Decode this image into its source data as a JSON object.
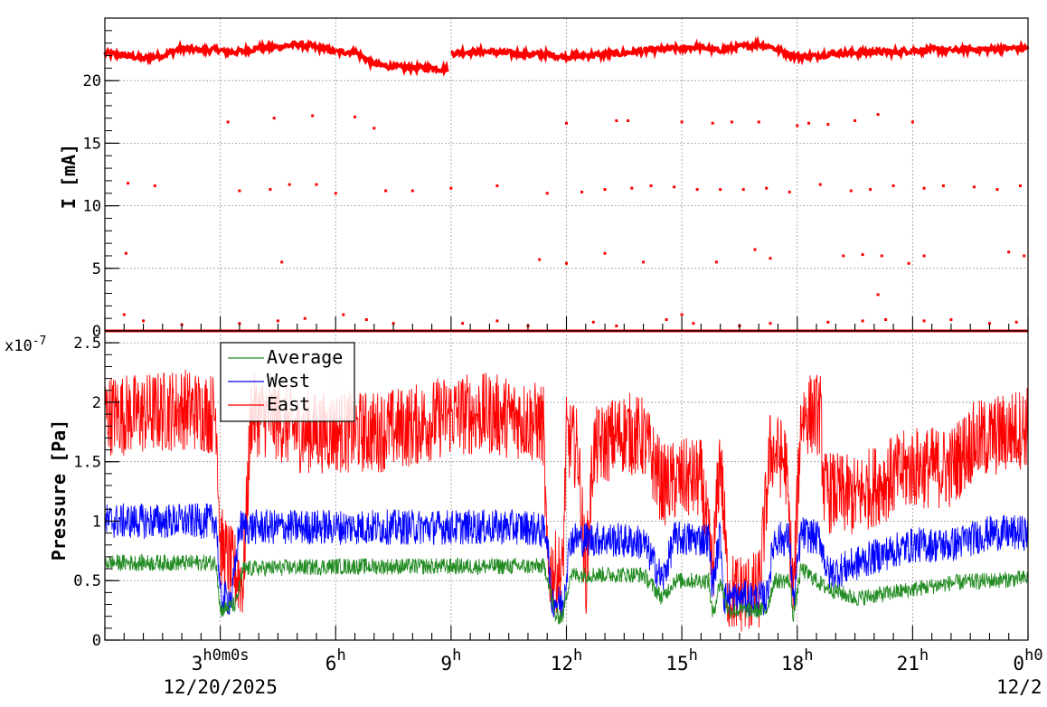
{
  "chart_data": [
    {
      "type": "scatter",
      "ylabel": "I [mA]",
      "ylim": [
        0,
        25
      ],
      "yticks": [
        "0",
        "5",
        "10",
        "15",
        "20"
      ],
      "grid": true,
      "series": [
        {
          "color": "#ff0000",
          "main_level": [
            [
              0.0,
              22.2
            ],
            [
              0.5,
              22.0
            ],
            [
              1.0,
              21.8
            ],
            [
              1.5,
              22.0
            ],
            [
              2.0,
              22.6
            ],
            [
              2.5,
              22.4
            ],
            [
              3.0,
              22.5
            ],
            [
              3.05,
              22.3
            ],
            [
              3.5,
              22.3
            ],
            [
              4.0,
              22.6
            ],
            [
              4.5,
              22.7
            ],
            [
              5.0,
              22.9
            ],
            [
              5.5,
              22.7
            ],
            [
              6.0,
              22.3
            ],
            [
              6.5,
              22.3
            ],
            [
              7.0,
              21.3
            ],
            [
              7.5,
              21.1
            ],
            [
              8.0,
              21.0
            ],
            [
              8.5,
              21.0
            ],
            [
              8.9,
              20.9
            ],
            [
              9.0,
              22.2
            ],
            [
              9.5,
              22.3
            ],
            [
              10.0,
              22.3
            ],
            [
              10.5,
              22.2
            ],
            [
              11.0,
              22.1
            ],
            [
              11.5,
              22.1
            ],
            [
              11.9,
              21.9
            ],
            [
              12.5,
              22.0
            ],
            [
              13.0,
              22.1
            ],
            [
              13.5,
              22.2
            ],
            [
              14.0,
              22.4
            ],
            [
              14.5,
              22.5
            ],
            [
              15.0,
              22.6
            ],
            [
              15.5,
              22.7
            ],
            [
              15.9,
              22.4
            ],
            [
              16.5,
              22.7
            ],
            [
              17.0,
              22.9
            ],
            [
              17.3,
              22.7
            ],
            [
              18.0,
              21.9
            ],
            [
              18.5,
              22.0
            ],
            [
              19.0,
              22.2
            ],
            [
              19.5,
              22.2
            ],
            [
              20.0,
              22.3
            ],
            [
              20.5,
              22.3
            ],
            [
              21.0,
              22.4
            ],
            [
              21.5,
              22.5
            ],
            [
              22.0,
              22.4
            ],
            [
              22.5,
              22.5
            ],
            [
              23.0,
              22.5
            ],
            [
              23.5,
              22.6
            ],
            [
              24.0,
              22.6
            ]
          ],
          "outliers": [
            [
              3.2,
              16.7
            ],
            [
              4.4,
              17.0
            ],
            [
              5.4,
              17.2
            ],
            [
              6.5,
              17.1
            ],
            [
              7.0,
              16.2
            ],
            [
              12.0,
              16.6
            ],
            [
              13.3,
              16.8
            ],
            [
              13.6,
              16.8
            ],
            [
              15.0,
              16.7
            ],
            [
              15.8,
              16.6
            ],
            [
              16.3,
              16.7
            ],
            [
              17.0,
              16.7
            ],
            [
              18.0,
              16.4
            ],
            [
              18.3,
              16.6
            ],
            [
              18.8,
              16.5
            ],
            [
              19.5,
              16.8
            ],
            [
              20.1,
              17.3
            ],
            [
              21.0,
              16.7
            ],
            [
              0.6,
              11.8
            ],
            [
              1.3,
              11.6
            ],
            [
              3.5,
              11.2
            ],
            [
              4.3,
              11.3
            ],
            [
              4.8,
              11.7
            ],
            [
              5.5,
              11.7
            ],
            [
              6.0,
              11.0
            ],
            [
              7.3,
              11.2
            ],
            [
              8.0,
              11.2
            ],
            [
              9.0,
              11.4
            ],
            [
              10.2,
              11.6
            ],
            [
              11.5,
              11.0
            ],
            [
              12.4,
              11.1
            ],
            [
              13.0,
              11.3
            ],
            [
              13.7,
              11.4
            ],
            [
              14.2,
              11.6
            ],
            [
              14.8,
              11.5
            ],
            [
              15.4,
              11.3
            ],
            [
              16.0,
              11.3
            ],
            [
              16.6,
              11.3
            ],
            [
              17.2,
              11.4
            ],
            [
              17.8,
              11.1
            ],
            [
              18.6,
              11.7
            ],
            [
              19.4,
              11.2
            ],
            [
              19.9,
              11.3
            ],
            [
              20.5,
              11.6
            ],
            [
              21.3,
              11.4
            ],
            [
              21.8,
              11.6
            ],
            [
              22.6,
              11.5
            ],
            [
              23.2,
              11.3
            ],
            [
              23.8,
              11.6
            ],
            [
              0.55,
              6.2
            ],
            [
              4.6,
              5.5
            ],
            [
              11.3,
              5.7
            ],
            [
              12.0,
              5.4
            ],
            [
              13.0,
              6.2
            ],
            [
              14.0,
              5.5
            ],
            [
              15.9,
              5.5
            ],
            [
              16.9,
              6.5
            ],
            [
              17.3,
              5.8
            ],
            [
              19.2,
              6.0
            ],
            [
              19.7,
              6.1
            ],
            [
              20.2,
              6.0
            ],
            [
              20.9,
              5.4
            ],
            [
              21.3,
              6.0
            ],
            [
              23.5,
              6.3
            ],
            [
              23.9,
              6.0
            ],
            [
              20.1,
              2.9
            ],
            [
              0.5,
              1.3
            ],
            [
              1.0,
              0.8
            ],
            [
              2.0,
              0.5
            ],
            [
              3.5,
              0.6
            ],
            [
              4.5,
              0.8
            ],
            [
              5.2,
              1.0
            ],
            [
              6.2,
              1.3
            ],
            [
              6.8,
              0.9
            ],
            [
              7.5,
              0.6
            ],
            [
              9.3,
              0.6
            ],
            [
              10.2,
              0.8
            ],
            [
              11.0,
              0.4
            ],
            [
              12.7,
              0.7
            ],
            [
              13.3,
              0.4
            ],
            [
              14.6,
              0.9
            ],
            [
              15.0,
              1.3
            ],
            [
              15.3,
              0.6
            ],
            [
              16.5,
              0.4
            ],
            [
              17.3,
              0.6
            ],
            [
              18.8,
              0.7
            ],
            [
              19.7,
              0.8
            ],
            [
              20.3,
              0.9
            ],
            [
              21.3,
              0.8
            ],
            [
              22.0,
              0.9
            ],
            [
              23.0,
              0.6
            ],
            [
              23.7,
              0.7
            ]
          ],
          "baseline": 0
        }
      ]
    },
    {
      "type": "line",
      "ylabel": "Pressure [Pa]",
      "yexponent": "x10",
      "yexponent_power": "-7",
      "ylim": [
        0,
        2.6
      ],
      "yticks": [
        "0",
        "0.5",
        "1",
        "1.5",
        "2",
        "2.5"
      ],
      "grid": true,
      "legend": {
        "placement": "top-left",
        "entries": [
          "Average",
          "West",
          "East"
        ]
      },
      "xlim": [
        0,
        24
      ],
      "xticks": [
        {
          "x": 3,
          "label": "3",
          "sup": "h0m0s"
        },
        {
          "x": 6,
          "label": "6",
          "sup": "h"
        },
        {
          "x": 9,
          "label": "9",
          "sup": "h"
        },
        {
          "x": 12,
          "label": "12",
          "sup": "h"
        },
        {
          "x": 15,
          "label": "15",
          "sup": "h"
        },
        {
          "x": 18,
          "label": "18",
          "sup": "h"
        },
        {
          "x": 21,
          "label": "21",
          "sup": "h"
        },
        {
          "x": 24,
          "label": "0",
          "sup": "h0"
        }
      ],
      "date_labels": [
        "12/20/2025",
        "12/2"
      ],
      "series": [
        {
          "name": "East",
          "color": "#ff0000",
          "level": [
            [
              0.0,
              1.9
            ],
            [
              1.0,
              1.9
            ],
            [
              2.0,
              1.95
            ],
            [
              2.9,
              1.9
            ],
            [
              3.0,
              0.8
            ],
            [
              3.3,
              0.6
            ],
            [
              3.6,
              0.5
            ],
            [
              3.8,
              1.9
            ],
            [
              4.5,
              1.85
            ],
            [
              5.0,
              1.75
            ],
            [
              6.0,
              1.75
            ],
            [
              7.0,
              1.75
            ],
            [
              8.0,
              1.8
            ],
            [
              9.0,
              1.9
            ],
            [
              10.0,
              1.9
            ],
            [
              11.0,
              1.85
            ],
            [
              11.4,
              1.8
            ],
            [
              11.5,
              0.6
            ],
            [
              11.9,
              0.55
            ],
            [
              12.0,
              1.7
            ],
            [
              12.3,
              1.6
            ],
            [
              12.5,
              0.5
            ],
            [
              12.7,
              1.6
            ],
            [
              13.5,
              1.75
            ],
            [
              14.0,
              1.7
            ],
            [
              14.5,
              1.3
            ],
            [
              15.0,
              1.35
            ],
            [
              15.5,
              1.35
            ],
            [
              15.8,
              0.55
            ],
            [
              16.0,
              1.6
            ],
            [
              16.2,
              0.4
            ],
            [
              17.0,
              0.4
            ],
            [
              17.3,
              1.6
            ],
            [
              17.7,
              1.5
            ],
            [
              17.9,
              0.35
            ],
            [
              18.1,
              1.9
            ],
            [
              18.6,
              1.9
            ],
            [
              18.7,
              1.25
            ],
            [
              19.5,
              1.2
            ],
            [
              20.0,
              1.3
            ],
            [
              21.0,
              1.45
            ],
            [
              22.0,
              1.45
            ],
            [
              22.5,
              1.65
            ],
            [
              23.5,
              1.75
            ],
            [
              24.0,
              1.8
            ]
          ],
          "spread": 0.35
        },
        {
          "name": "West",
          "color": "#0000ff",
          "level": [
            [
              0.0,
              1.0
            ],
            [
              2.0,
              1.0
            ],
            [
              2.9,
              1.0
            ],
            [
              3.0,
              0.35
            ],
            [
              3.3,
              0.35
            ],
            [
              3.5,
              0.95
            ],
            [
              5.0,
              0.95
            ],
            [
              7.0,
              0.95
            ],
            [
              9.0,
              0.95
            ],
            [
              11.0,
              0.95
            ],
            [
              11.5,
              0.9
            ],
            [
              11.6,
              0.35
            ],
            [
              11.9,
              0.3
            ],
            [
              12.1,
              0.85
            ],
            [
              13.0,
              0.85
            ],
            [
              14.0,
              0.82
            ],
            [
              14.5,
              0.5
            ],
            [
              14.8,
              0.85
            ],
            [
              15.7,
              0.85
            ],
            [
              15.8,
              0.45
            ],
            [
              16.0,
              0.9
            ],
            [
              16.1,
              0.35
            ],
            [
              17.2,
              0.35
            ],
            [
              17.4,
              0.85
            ],
            [
              17.8,
              0.85
            ],
            [
              17.9,
              0.3
            ],
            [
              18.1,
              0.9
            ],
            [
              18.6,
              0.85
            ],
            [
              18.8,
              0.55
            ],
            [
              20.0,
              0.7
            ],
            [
              21.0,
              0.8
            ],
            [
              22.0,
              0.8
            ],
            [
              23.0,
              0.9
            ],
            [
              24.0,
              0.9
            ]
          ],
          "spread": 0.15
        },
        {
          "name": "Average",
          "color": "#228b22",
          "level": [
            [
              0.0,
              0.65
            ],
            [
              2.0,
              0.65
            ],
            [
              2.9,
              0.65
            ],
            [
              3.0,
              0.25
            ],
            [
              3.4,
              0.3
            ],
            [
              3.6,
              0.6
            ],
            [
              6.0,
              0.62
            ],
            [
              9.0,
              0.62
            ],
            [
              11.4,
              0.62
            ],
            [
              11.5,
              0.55
            ],
            [
              11.7,
              0.2
            ],
            [
              11.9,
              0.2
            ],
            [
              12.1,
              0.55
            ],
            [
              14.0,
              0.55
            ],
            [
              14.5,
              0.35
            ],
            [
              14.8,
              0.5
            ],
            [
              15.7,
              0.5
            ],
            [
              15.8,
              0.2
            ],
            [
              16.0,
              0.5
            ],
            [
              16.2,
              0.25
            ],
            [
              17.2,
              0.25
            ],
            [
              17.4,
              0.5
            ],
            [
              17.8,
              0.5
            ],
            [
              17.9,
              0.2
            ],
            [
              18.1,
              0.6
            ],
            [
              18.7,
              0.45
            ],
            [
              19.5,
              0.35
            ],
            [
              20.5,
              0.4
            ],
            [
              22.0,
              0.48
            ],
            [
              23.0,
              0.5
            ],
            [
              24.0,
              0.52
            ]
          ],
          "spread": 0.07
        }
      ]
    }
  ]
}
